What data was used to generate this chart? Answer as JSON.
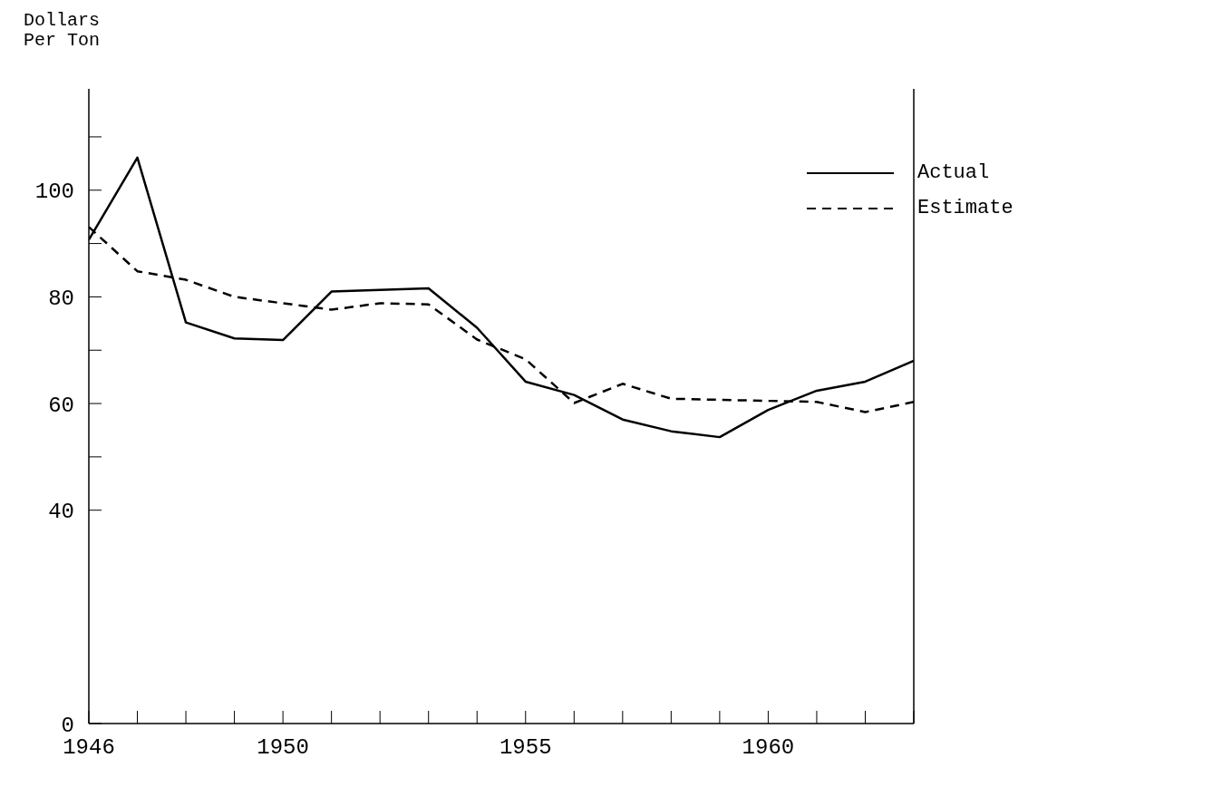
{
  "chart_data": {
    "type": "line",
    "ylabel": "Dollars Per Ton",
    "x": [
      1946,
      1947,
      1948,
      1949,
      1950,
      1951,
      1952,
      1953,
      1954,
      1955,
      1956,
      1957,
      1958,
      1959,
      1960,
      1961,
      1962,
      1963
    ],
    "series": [
      {
        "name": "Actual",
        "color": "#000000",
        "line_style": "solid",
        "values": [
          90.7,
          106.1,
          75.2,
          72.2,
          71.9,
          81.0,
          81.3,
          81.6,
          74.2,
          64.1,
          61.6,
          57.0,
          54.8,
          53.7,
          58.8,
          62.4,
          64.1,
          68.0
        ]
      },
      {
        "name": "Estimate",
        "color": "#000000",
        "line_style": "dashed",
        "values": [
          93.1,
          84.8,
          83.2,
          80.0,
          78.8,
          77.6,
          78.8,
          78.6,
          72.0,
          68.3,
          60.1,
          63.7,
          60.9,
          60.7,
          60.5,
          60.3,
          58.4,
          60.3
        ]
      }
    ],
    "xlim": [
      1946,
      1963
    ],
    "xticks": [
      1946,
      {
        "value": 1947,
        "label": null
      },
      {
        "value": 1948,
        "label": null
      },
      {
        "value": 1949,
        "label": null
      },
      1950,
      {
        "value": 1951,
        "label": null
      },
      {
        "value": 1952,
        "label": null
      },
      {
        "value": 1953,
        "label": null
      },
      {
        "value": 1954,
        "label": null
      },
      1955,
      {
        "value": 1956,
        "label": null
      },
      {
        "value": 1957,
        "label": null
      },
      {
        "value": 1958,
        "label": null
      },
      {
        "value": 1959,
        "label": null
      },
      1960,
      {
        "value": 1961,
        "label": null
      },
      {
        "value": 1962,
        "label": null
      },
      {
        "value": 1963,
        "label": null
      }
    ],
    "ylim": [
      0,
      119
    ],
    "yticks": [
      0,
      40,
      {
        "value": 50,
        "label": null
      },
      60,
      {
        "value": 70,
        "label": null
      },
      80,
      {
        "value": 90,
        "label": null
      },
      100,
      {
        "value": 110,
        "label": null
      }
    ],
    "grid": false,
    "legend": "top right",
    "marker": "none"
  }
}
